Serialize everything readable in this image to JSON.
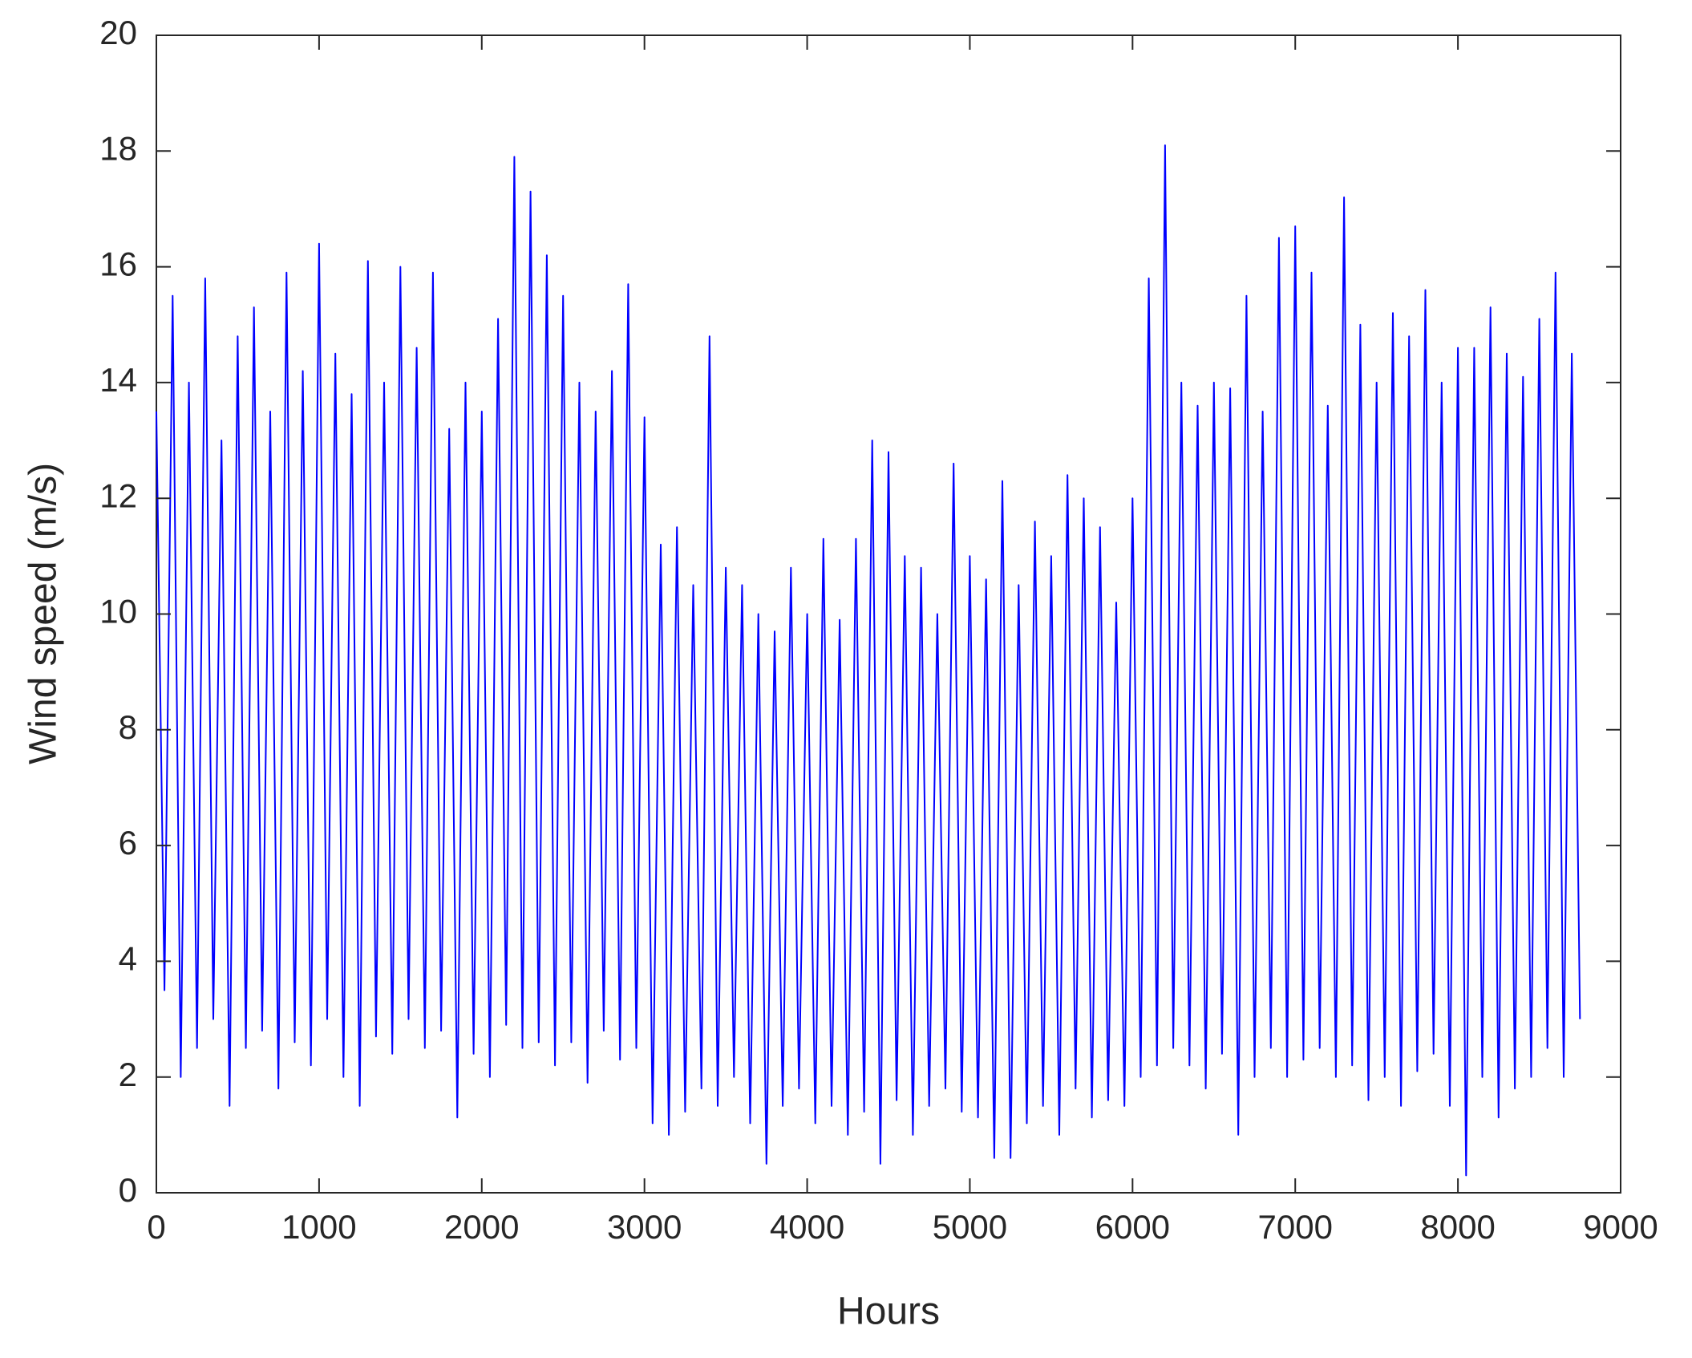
{
  "chart_data": {
    "type": "line",
    "xlabel": "Hours",
    "ylabel": "Wind speed (m/s)",
    "xlim": [
      0,
      9000
    ],
    "ylim": [
      0,
      20
    ],
    "xticks": [
      0,
      1000,
      2000,
      3000,
      4000,
      5000,
      6000,
      7000,
      8000,
      9000
    ],
    "yticks": [
      0,
      2,
      4,
      6,
      8,
      10,
      12,
      14,
      16,
      18,
      20
    ],
    "x": [
      0,
      50,
      100,
      150,
      200,
      250,
      300,
      350,
      400,
      450,
      500,
      550,
      600,
      650,
      700,
      750,
      800,
      850,
      900,
      950,
      1000,
      1050,
      1100,
      1150,
      1200,
      1250,
      1300,
      1350,
      1400,
      1450,
      1500,
      1550,
      1600,
      1650,
      1700,
      1750,
      1800,
      1850,
      1900,
      1950,
      2000,
      2050,
      2100,
      2150,
      2200,
      2250,
      2300,
      2350,
      2400,
      2450,
      2500,
      2550,
      2600,
      2650,
      2700,
      2750,
      2800,
      2850,
      2900,
      2950,
      3000,
      3050,
      3100,
      3150,
      3200,
      3250,
      3300,
      3350,
      3400,
      3450,
      3500,
      3550,
      3600,
      3650,
      3700,
      3750,
      3800,
      3850,
      3900,
      3950,
      4000,
      4050,
      4100,
      4150,
      4200,
      4250,
      4300,
      4350,
      4400,
      4450,
      4500,
      4550,
      4600,
      4650,
      4700,
      4750,
      4800,
      4850,
      4900,
      4950,
      5000,
      5050,
      5100,
      5150,
      5200,
      5250,
      5300,
      5350,
      5400,
      5450,
      5500,
      5550,
      5600,
      5650,
      5700,
      5750,
      5800,
      5850,
      5900,
      5950,
      6000,
      6050,
      6100,
      6150,
      6200,
      6250,
      6300,
      6350,
      6400,
      6450,
      6500,
      6550,
      6600,
      6650,
      6700,
      6750,
      6800,
      6850,
      6900,
      6950,
      7000,
      7050,
      7100,
      7150,
      7200,
      7250,
      7300,
      7350,
      7400,
      7450,
      7500,
      7550,
      7600,
      7650,
      7700,
      7750,
      7800,
      7850,
      7900,
      7950,
      8000,
      8050,
      8100,
      8150,
      8200,
      8250,
      8300,
      8350,
      8400,
      8450,
      8500,
      8550,
      8600,
      8650,
      8700,
      8750
    ],
    "series": [
      {
        "name": "Wind speed",
        "color": "#0000ff",
        "values": [
          13.5,
          3.5,
          15.5,
          2.0,
          14,
          2.5,
          15.8,
          3,
          13,
          1.5,
          14.8,
          2.5,
          15.3,
          2.8,
          13.5,
          1.8,
          15.9,
          2.6,
          14.2,
          2.2,
          16.4,
          3.0,
          14.5,
          2.0,
          13.8,
          1.5,
          16.1,
          2.7,
          14.0,
          2.4,
          16.0,
          3.0,
          14.6,
          2.5,
          15.9,
          2.8,
          13.2,
          1.3,
          14.0,
          2.4,
          13.5,
          2.0,
          15.1,
          2.9,
          17.9,
          2.5,
          17.3,
          2.6,
          16.2,
          2.2,
          15.5,
          2.6,
          14.0,
          1.9,
          13.5,
          2.8,
          14.2,
          2.3,
          15.7,
          2.5,
          13.4,
          1.2,
          11.2,
          1.0,
          11.5,
          1.4,
          10.5,
          1.8,
          14.8,
          1.5,
          10.8,
          2.0,
          10.5,
          1.2,
          10.0,
          0.5,
          9.7,
          1.5,
          10.8,
          1.8,
          10.0,
          1.2,
          11.3,
          1.5,
          9.9,
          1.0,
          11.3,
          1.4,
          13.0,
          0.5,
          12.8,
          1.6,
          11.0,
          1.0,
          10.8,
          1.5,
          10.0,
          1.8,
          12.6,
          1.4,
          11.0,
          1.3,
          10.6,
          0.6,
          12.3,
          0.6,
          10.5,
          1.2,
          11.6,
          1.5,
          11.0,
          1.0,
          12.4,
          1.8,
          12.0,
          1.3,
          11.5,
          1.6,
          10.2,
          1.5,
          12.0,
          2.0,
          15.8,
          2.2,
          18.1,
          2.5,
          14.0,
          2.2,
          13.6,
          1.8,
          14.0,
          2.4,
          13.9,
          1.0,
          15.5,
          2.0,
          13.5,
          2.5,
          16.5,
          2.0,
          16.7,
          2.3,
          15.9,
          2.5,
          13.6,
          2.0,
          17.2,
          2.2,
          15.0,
          1.6,
          14.0,
          2.0,
          15.2,
          1.5,
          14.8,
          2.1,
          15.6,
          2.4,
          14.0,
          1.5,
          14.6,
          0.3,
          14.6,
          2.0,
          15.3,
          1.3,
          14.5,
          1.8,
          14.1,
          2.0,
          15.1,
          2.5,
          15.9,
          2.0,
          14.5,
          3.0
        ]
      }
    ]
  }
}
